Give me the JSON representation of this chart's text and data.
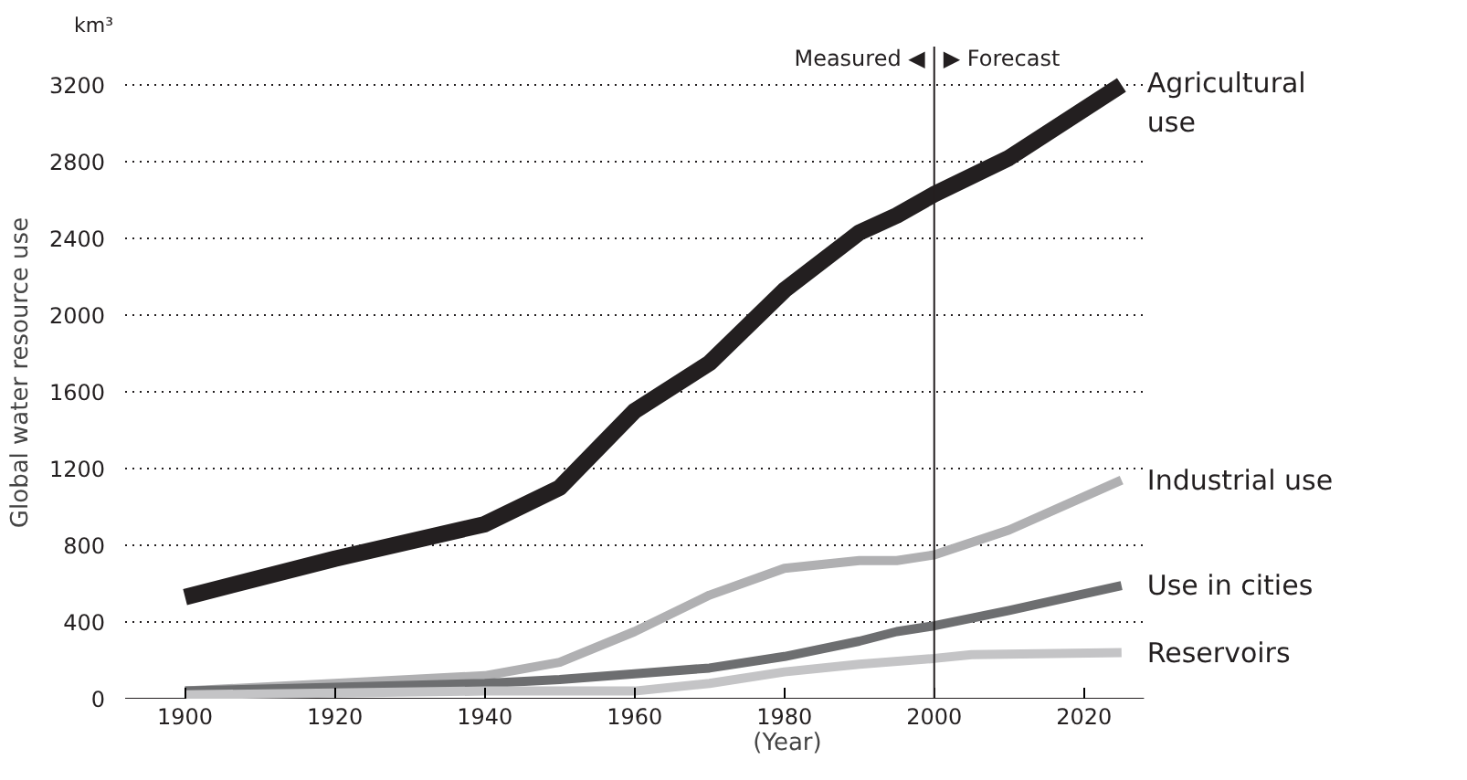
{
  "chart_data": {
    "type": "line",
    "ylabel": "Global water resource use",
    "xlabel": "(Year)",
    "x": [
      1900,
      1920,
      1940,
      1950,
      1960,
      1970,
      1980,
      1990,
      1995,
      2000,
      2010,
      2025
    ],
    "series": [
      {
        "name": "Agricultural\nuse",
        "color": "#231f20",
        "values": [
          530,
          730,
          910,
          1100,
          1500,
          1750,
          2130,
          2430,
          2520,
          2630,
          2820,
          3200
        ]
      },
      {
        "name": "Industrial use",
        "color": "#b0b0b2",
        "values": [
          40,
          80,
          120,
          190,
          350,
          540,
          680,
          720,
          720,
          750,
          880,
          1140
        ]
      },
      {
        "name": "Use in cities",
        "color": "#6d6e70",
        "values": [
          40,
          60,
          80,
          100,
          130,
          160,
          220,
          300,
          350,
          380,
          460,
          590
        ]
      },
      {
        "name": "Reservoirs",
        "color": "#c4c4c6",
        "x": [
          1900,
          1920,
          1940,
          1960,
          1970,
          1980,
          1990,
          2000,
          2005,
          2025
        ],
        "values": [
          20,
          30,
          40,
          40,
          80,
          140,
          180,
          210,
          230,
          240
        ]
      }
    ],
    "xlim": [
      1892,
      2028
    ],
    "ylim": [
      0,
      3400
    ],
    "xticks": [
      1900,
      1920,
      1940,
      1960,
      1980,
      2000,
      2020
    ],
    "yticks": [
      0,
      400,
      800,
      1200,
      1600,
      2000,
      2400,
      2800,
      3200
    ],
    "grid": "y",
    "marker": "none",
    "line_style": "solid",
    "ref_lines": [
      {
        "axis": "x",
        "value": 2000,
        "color": "#231f20"
      }
    ],
    "annotations": [
      "km³",
      {
        "text": "Measured ◀",
        "x": 2000,
        "y": 3340
      },
      {
        "text": "▶ Forecast",
        "x": 2000,
        "y": 3340
      }
    ]
  }
}
